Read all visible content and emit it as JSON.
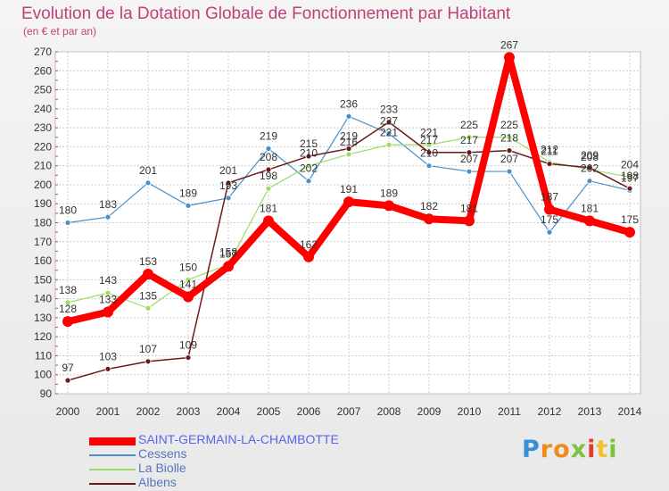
{
  "chart_data": {
    "type": "line",
    "title": "Evolution de la Dotation Globale de Fonctionnement par Habitant",
    "subtitle": "(en € et par an)",
    "x": [
      "2000",
      "2001",
      "2002",
      "2003",
      "2004",
      "2005",
      "2006",
      "2007",
      "2008",
      "2009",
      "2010",
      "2011",
      "2012",
      "2013",
      "2014"
    ],
    "ylim": [
      90,
      270
    ],
    "yticks": [
      90,
      100,
      110,
      120,
      130,
      140,
      150,
      160,
      170,
      180,
      190,
      200,
      210,
      220,
      230,
      240,
      250,
      260,
      270
    ],
    "grid": true,
    "legend_position": "bottom-left",
    "series": [
      {
        "name": "SAINT-GERMAIN-LA-CHAMBOTTE",
        "color": "#ff0000",
        "values": [
          128,
          133,
          153,
          141,
          157,
          181,
          162,
          191,
          189,
          182,
          181,
          267,
          187,
          181,
          175
        ]
      },
      {
        "name": "Cessens",
        "color": "#4a90c8",
        "values": [
          180,
          183,
          201,
          189,
          193,
          219,
          202,
          236,
          227,
          210,
          207,
          207,
          175,
          202,
          197
        ]
      },
      {
        "name": "La Biolle",
        "color": "#99dd66",
        "values": [
          138,
          143,
          135,
          150,
          158,
          198,
          210,
          216,
          221,
          221,
          225,
          225,
          212,
          208,
          204
        ]
      },
      {
        "name": "Albens",
        "color": "#6b1a1a",
        "values": [
          97,
          103,
          107,
          109,
          201,
          208,
          215,
          219,
          233,
          217,
          217,
          218,
          211,
          209,
          198
        ]
      }
    ]
  },
  "logo": {
    "letters": [
      "P",
      "r",
      "o",
      "x",
      "i",
      "t",
      "i"
    ],
    "colors": [
      "#3a8fd6",
      "#f08a1e",
      "#f08a1e",
      "#7cc242",
      "#e23c2e",
      "#f2c12e",
      "#7cc242"
    ]
  }
}
